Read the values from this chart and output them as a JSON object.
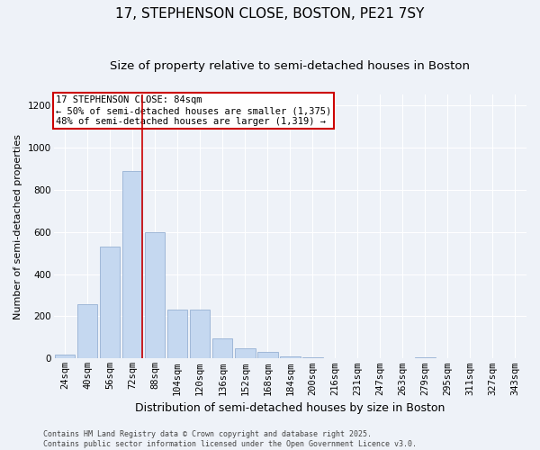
{
  "title1": "17, STEPHENSON CLOSE, BOSTON, PE21 7SY",
  "title2": "Size of property relative to semi-detached houses in Boston",
  "xlabel": "Distribution of semi-detached houses by size in Boston",
  "ylabel": "Number of semi-detached properties",
  "footer": "Contains HM Land Registry data © Crown copyright and database right 2025.\nContains public sector information licensed under the Open Government Licence v3.0.",
  "categories": [
    "24sqm",
    "40sqm",
    "56sqm",
    "72sqm",
    "88sqm",
    "104sqm",
    "120sqm",
    "136sqm",
    "152sqm",
    "168sqm",
    "184sqm",
    "200sqm",
    "216sqm",
    "231sqm",
    "247sqm",
    "263sqm",
    "279sqm",
    "295sqm",
    "311sqm",
    "327sqm",
    "343sqm"
  ],
  "values": [
    20,
    258,
    530,
    890,
    600,
    230,
    230,
    95,
    50,
    30,
    10,
    5,
    0,
    0,
    0,
    0,
    5,
    0,
    0,
    0,
    0
  ],
  "bar_color": "#c5d8f0",
  "bar_edge_color": "#a0b8d8",
  "bg_color": "#eef2f8",
  "grid_color": "#ffffff",
  "annotation_title": "17 STEPHENSON CLOSE: 84sqm",
  "annotation_line1": "← 50% of semi-detached houses are smaller (1,375)",
  "annotation_line2": "48% of semi-detached houses are larger (1,319) →",
  "vline_color": "#cc0000",
  "annotation_box_color": "#cc0000",
  "ylim": [
    0,
    1250
  ],
  "yticks": [
    0,
    200,
    400,
    600,
    800,
    1000,
    1200
  ],
  "title1_fontsize": 11,
  "title2_fontsize": 9.5,
  "xlabel_fontsize": 9,
  "ylabel_fontsize": 8,
  "tick_fontsize": 7.5,
  "annotation_fontsize": 7.5,
  "footer_fontsize": 6
}
